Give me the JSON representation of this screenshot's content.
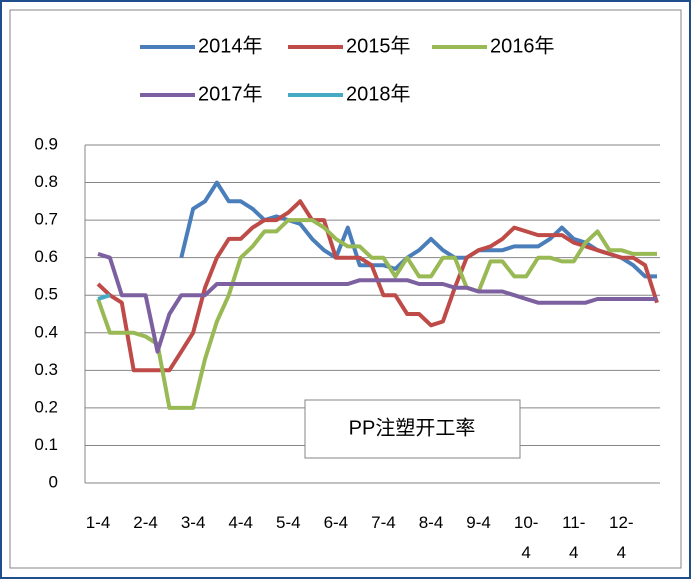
{
  "chart_data": {
    "type": "line",
    "annotation": "PP注塑开工率",
    "categories": [
      "1-4",
      null,
      null,
      null,
      "2-4",
      null,
      null,
      null,
      "3-4",
      null,
      null,
      null,
      "4-4",
      null,
      null,
      null,
      "5-4",
      null,
      null,
      null,
      "6-4",
      null,
      null,
      null,
      "7-4",
      null,
      null,
      null,
      "8-4",
      null,
      null,
      null,
      "9-4",
      null,
      null,
      null,
      "10-4",
      null,
      null,
      null,
      "11-4",
      null,
      null,
      null,
      "12-4",
      null,
      null,
      null
    ],
    "series": [
      {
        "name": "2014年",
        "color": "#4a7ebb",
        "values": [
          null,
          null,
          null,
          null,
          null,
          null,
          null,
          0.6,
          0.73,
          0.75,
          0.8,
          0.75,
          0.75,
          0.73,
          0.7,
          0.71,
          0.7,
          0.69,
          0.65,
          0.62,
          0.6,
          0.68,
          0.58,
          0.58,
          0.58,
          0.57,
          0.6,
          0.62,
          0.65,
          0.62,
          0.6,
          0.6,
          0.62,
          0.62,
          0.62,
          0.63,
          0.63,
          0.63,
          0.65,
          0.68,
          0.65,
          0.64,
          0.62,
          0.61,
          0.6,
          0.58,
          0.55,
          0.55
        ]
      },
      {
        "name": "2015年",
        "color": "#be4b48",
        "values": [
          0.53,
          0.5,
          0.48,
          0.3,
          0.3,
          0.3,
          0.3,
          0.35,
          0.4,
          0.52,
          0.6,
          0.65,
          0.65,
          0.68,
          0.7,
          0.7,
          0.72,
          0.75,
          0.7,
          0.7,
          0.6,
          0.6,
          0.6,
          0.58,
          0.5,
          0.5,
          0.45,
          0.45,
          0.42,
          0.43,
          0.52,
          0.6,
          0.62,
          0.63,
          0.65,
          0.68,
          0.67,
          0.66,
          0.66,
          0.66,
          0.64,
          0.63,
          0.62,
          0.61,
          0.6,
          0.6,
          0.58,
          0.48
        ]
      },
      {
        "name": "2016年",
        "color": "#98b954",
        "values": [
          0.49,
          0.4,
          0.4,
          0.4,
          0.39,
          0.37,
          0.2,
          0.2,
          0.2,
          0.33,
          0.43,
          0.5,
          0.6,
          0.63,
          0.67,
          0.67,
          0.7,
          0.7,
          0.7,
          0.68,
          0.65,
          0.63,
          0.63,
          0.6,
          0.6,
          0.55,
          0.6,
          0.55,
          0.55,
          0.6,
          0.6,
          0.52,
          0.51,
          0.59,
          0.59,
          0.55,
          0.55,
          0.6,
          0.6,
          0.59,
          0.59,
          0.64,
          0.67,
          0.62,
          0.62,
          0.61,
          0.61,
          0.61
        ]
      },
      {
        "name": "2017年",
        "color": "#7d60a0",
        "values": [
          0.61,
          0.6,
          0.5,
          0.5,
          0.5,
          0.35,
          0.45,
          0.5,
          0.5,
          0.5,
          0.53,
          0.53,
          0.53,
          0.53,
          0.53,
          0.53,
          0.53,
          0.53,
          0.53,
          0.53,
          0.53,
          0.53,
          0.54,
          0.54,
          0.54,
          0.54,
          0.54,
          0.53,
          0.53,
          0.53,
          0.52,
          0.52,
          0.51,
          0.51,
          0.51,
          0.5,
          0.49,
          0.48,
          0.48,
          0.48,
          0.48,
          0.48,
          0.49,
          0.49,
          0.49,
          0.49,
          0.49,
          0.49
        ]
      },
      {
        "name": "2018年",
        "color": "#46aac5",
        "values": [
          0.49,
          0.5,
          null,
          null,
          null,
          null,
          null,
          null,
          null,
          null,
          null,
          null,
          null,
          null,
          null,
          null,
          null,
          null,
          null,
          null,
          null,
          null,
          null,
          null,
          null,
          null,
          null,
          null,
          null,
          null,
          null,
          null,
          null,
          null,
          null,
          null,
          null,
          null,
          null,
          null,
          null,
          null,
          null,
          null,
          null,
          null,
          null,
          null
        ]
      }
    ],
    "ylim": [
      0,
      0.9
    ],
    "yticks": [
      0,
      0.1,
      0.2,
      0.3,
      0.4,
      0.5,
      0.6,
      0.7,
      0.8,
      0.9
    ],
    "grid": true
  }
}
